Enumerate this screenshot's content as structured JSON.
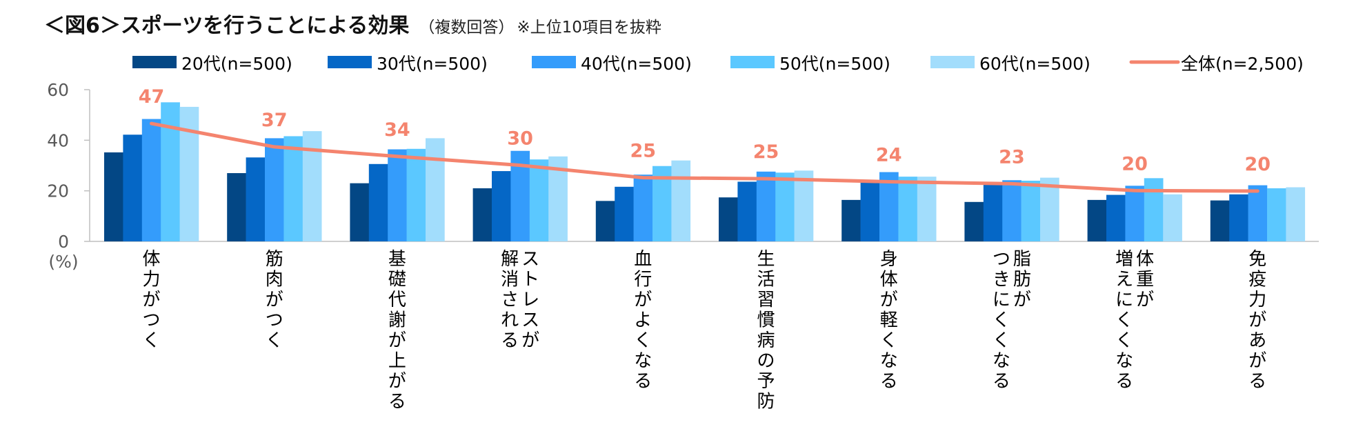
{
  "title": {
    "main": "＜図6＞スポーツを行うことによる効果",
    "sub": "（複数回答）",
    "note": "※上位10項目を抜粋"
  },
  "colors": {
    "series": [
      "#034785",
      "#0567C6",
      "#349CFB",
      "#5BC8FF",
      "#A2DDFC"
    ],
    "total_line": "#F4846E",
    "axis": "#BFBFBF",
    "text": "#595959"
  },
  "chart_data": {
    "type": "bar",
    "categories": [
      "体力がつく",
      "筋肉がつく",
      "基礎代謝が上がる",
      "ストレスが解消される",
      "血行がよくなる",
      "生活習慣病の予防",
      "身体が軽くなる",
      "脂肪がつきにくくなる",
      "体重が増えにくくなる",
      "免疫力があがる"
    ],
    "category_lines": [
      [
        "体力がつく"
      ],
      [
        "筋肉がつく"
      ],
      [
        "基礎代謝が上がる"
      ],
      [
        "ストレスが",
        "解消される"
      ],
      [
        "血行がよくなる"
      ],
      [
        "生活習慣病の予防"
      ],
      [
        "身体が軽くなる"
      ],
      [
        "脂肪が",
        "つきにくくなる"
      ],
      [
        "体重が",
        "増えにくくなる"
      ],
      [
        "免疫力があがる"
      ]
    ],
    "series": [
      {
        "name": "20代(n=500)",
        "values": [
          35.2,
          27.0,
          23.0,
          21.0,
          16.0,
          17.4,
          16.4,
          15.6,
          16.4,
          16.2
        ]
      },
      {
        "name": "30代(n=500)",
        "values": [
          42.2,
          33.2,
          30.6,
          27.8,
          21.6,
          23.6,
          23.2,
          22.8,
          18.4,
          18.6
        ]
      },
      {
        "name": "40代(n=500)",
        "values": [
          48.4,
          40.8,
          36.4,
          35.8,
          26.4,
          27.6,
          27.4,
          24.2,
          22.0,
          22.2
        ]
      },
      {
        "name": "50代(n=500)",
        "values": [
          55.0,
          41.6,
          36.6,
          32.4,
          29.8,
          27.2,
          25.6,
          24.0,
          25.0,
          21.0
        ]
      },
      {
        "name": "60代(n=500)",
        "values": [
          53.2,
          43.6,
          40.8,
          33.6,
          32.0,
          28.0,
          25.6,
          25.2,
          18.6,
          21.4
        ]
      }
    ],
    "total": {
      "name": "全体(n=2,500)",
      "values": [
        46.6,
        37.4,
        33.6,
        30.1,
        25.2,
        24.8,
        23.6,
        22.8,
        20.1,
        19.9
      ]
    },
    "total_labels": [
      "47",
      "37",
      "34",
      "30",
      "25",
      "25",
      "24",
      "23",
      "20",
      "20"
    ],
    "y_ticks": [
      "0",
      "20",
      "40",
      "60"
    ],
    "ylim": [
      0,
      60
    ],
    "ylabel": "(%)",
    "legend_position": "top"
  }
}
